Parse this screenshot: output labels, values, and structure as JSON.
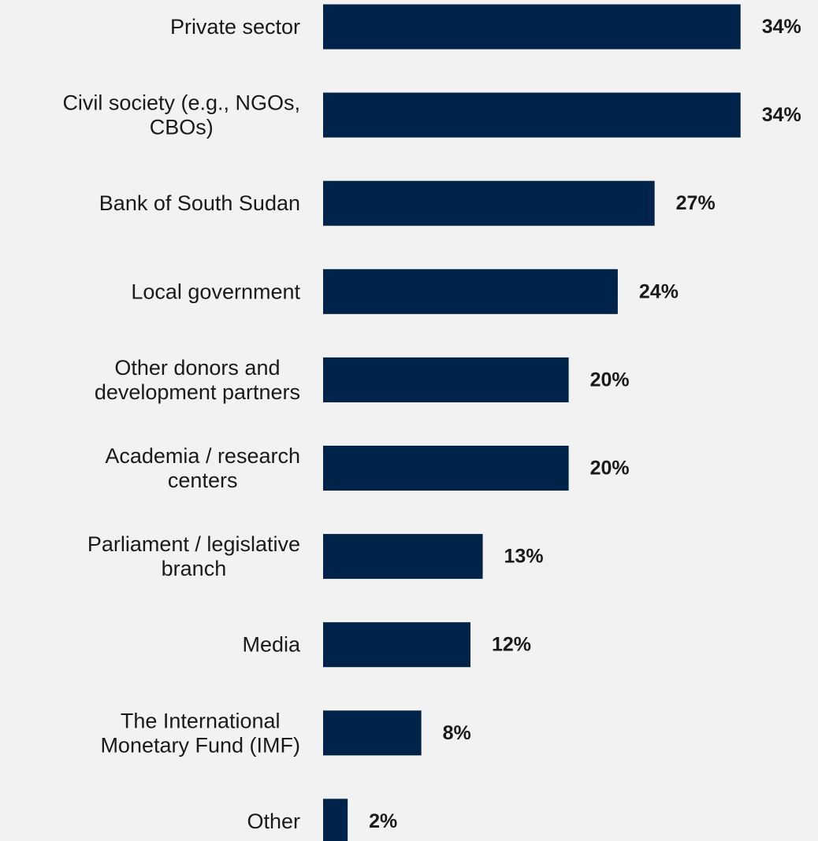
{
  "chart_data": {
    "type": "bar",
    "orientation": "horizontal",
    "categories": [
      "Private sector",
      "Civil society (e.g., NGOs, CBOs)",
      "Bank of South Sudan",
      "Local government",
      "Other donors and development partners",
      "Academia / research centers",
      "Parliament / legislative branch",
      "Media",
      "The International Monetary Fund (IMF)",
      "Other"
    ],
    "category_lines": [
      [
        "Private sector"
      ],
      [
        "Civil society (e.g., NGOs,",
        "CBOs)"
      ],
      [
        "Bank of South Sudan"
      ],
      [
        "Local government"
      ],
      [
        "Other donors and",
        "development partners"
      ],
      [
        "Academia / research",
        "centers"
      ],
      [
        "Parliament / legislative",
        "branch"
      ],
      [
        "Media"
      ],
      [
        "The International",
        "Monetary Fund (IMF)"
      ],
      [
        "Other"
      ]
    ],
    "values": [
      34,
      34,
      27,
      24,
      20,
      20,
      13,
      12,
      8,
      2
    ],
    "value_labels": [
      "34%",
      "34%",
      "27%",
      "24%",
      "20%",
      "20%",
      "13%",
      "12%",
      "8%",
      "2%"
    ],
    "unit": "%",
    "bar_color": "#00234a",
    "title": "",
    "xlabel": "",
    "ylabel": "",
    "grid": false,
    "legend": "none"
  }
}
